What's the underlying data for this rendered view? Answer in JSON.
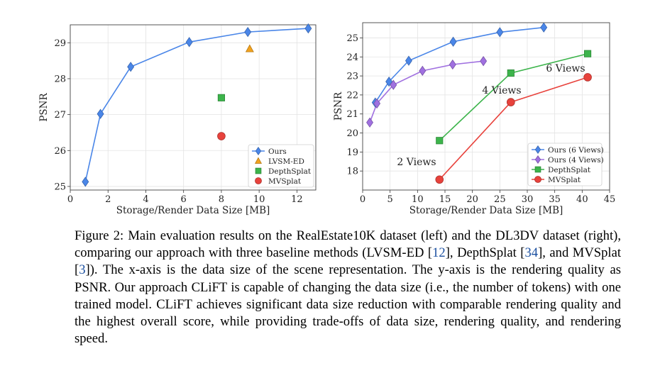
{
  "chart_data": [
    {
      "type": "scatter",
      "title": "",
      "xlabel": "Storage/Render Data Size [MB]",
      "ylabel": "PSNR",
      "xlim": [
        0,
        13
      ],
      "ylim": [
        24.9,
        29.5
      ],
      "xticks": [
        0,
        2,
        4,
        6,
        8,
        10,
        12
      ],
      "yticks": [
        25,
        26,
        27,
        28,
        29
      ],
      "legend_position": "lower-right",
      "series": [
        {
          "name": "Ours",
          "marker": "diamond",
          "color": "#4a86e8",
          "line": true,
          "x": [
            0.8,
            1.6,
            3.2,
            6.3,
            9.4,
            12.6
          ],
          "y": [
            25.13,
            27.02,
            28.33,
            29.02,
            29.3,
            29.4
          ]
        },
        {
          "name": "LVSM-ED",
          "marker": "triangle",
          "color": "#f2a21e",
          "line": false,
          "x": [
            9.5
          ],
          "y": [
            28.83
          ]
        },
        {
          "name": "DepthSplat",
          "marker": "square",
          "color": "#3cb44b",
          "line": false,
          "x": [
            8.0
          ],
          "y": [
            27.47
          ]
        },
        {
          "name": "MVSplat",
          "marker": "circle",
          "color": "#e8423c",
          "line": false,
          "x": [
            8.0
          ],
          "y": [
            26.4
          ]
        }
      ]
    },
    {
      "type": "scatter",
      "title": "",
      "xlabel": "Storage/Render Data Size [MB]",
      "ylabel": "PSNR",
      "xlim": [
        0,
        45
      ],
      "ylim": [
        17.0,
        25.8
      ],
      "xticks": [
        0,
        5,
        10,
        15,
        20,
        25,
        30,
        35,
        40,
        45
      ],
      "yticks": [
        18,
        19,
        20,
        21,
        22,
        23,
        24,
        25
      ],
      "legend_position": "lower-right",
      "series": [
        {
          "name": "Ours (6 Views)",
          "marker": "diamond",
          "color": "#4a86e8",
          "line": true,
          "x": [
            2.3,
            4.8,
            8.4,
            16.5,
            25.0,
            33.0
          ],
          "y": [
            21.6,
            22.7,
            23.8,
            24.8,
            25.3,
            25.55
          ]
        },
        {
          "name": "Ours (4 Views)",
          "marker": "diamond",
          "color": "#a070e0",
          "line": true,
          "x": [
            1.3,
            2.6,
            5.6,
            10.9,
            16.4,
            22.0
          ],
          "y": [
            20.55,
            21.55,
            22.53,
            23.27,
            23.6,
            23.78
          ]
        },
        {
          "name": "DepthSplat",
          "marker": "square",
          "color": "#3cb44b",
          "line": true,
          "x": [
            14.0,
            27.0,
            41.0
          ],
          "y": [
            19.6,
            23.15,
            24.17
          ]
        },
        {
          "name": "MVSplat",
          "marker": "circle",
          "color": "#e8423c",
          "line": true,
          "x": [
            14.0,
            27.0,
            41.0
          ],
          "y": [
            17.55,
            21.62,
            22.93
          ]
        }
      ],
      "annotations": [
        "2 Views",
        "4 Views",
        "6 Views"
      ]
    }
  ],
  "caption": {
    "prefix": "Figure 2: Main evaluation results on the RealEstate10K dataset (left) and the DL3DV dataset (right), comparing our approach with three baseline methods (LVSM-ED [",
    "cite1": "12",
    "mid1": "], DepthSplat [",
    "cite2": "34",
    "mid2": "], and MVSplat [",
    "cite3": "3",
    "suffix": "]). The x-axis is the data size of the scene representation. The y-axis is the rendering quality as PSNR. Our approach CLiFT is capable of changing the data size (i.e., the number of tokens) with one trained model. CLiFT achieves significant data size reduction with comparable rendering quality and the highest overall score, while providing trade-offs of data size, rendering quality, and rendering speed."
  }
}
